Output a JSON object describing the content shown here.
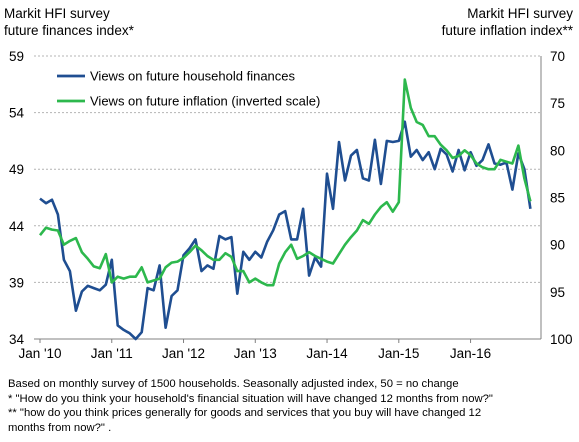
{
  "left_title": [
    "Markit HFI survey",
    "future finances index*"
  ],
  "right_title": [
    "Markit HFI survey",
    "future inflation index**"
  ],
  "notes": [
    "Based on monthly survey of 1500 households. Seasonally adjusted index, 50 = no change",
    "* \"How do you think your household's  financial situation will have changed 12 months  from now?\"",
    "** \"how do you think prices generally for goods and services that you buy will have changed 12",
    "months from now?\"  ."
  ],
  "colors": {
    "finances": "#1f4e91",
    "inflation": "#2db84d",
    "grid": "#b4b4b4"
  },
  "chart_data": {
    "type": "line",
    "x": [
      "2010-01",
      "2010-02",
      "2010-03",
      "2010-04",
      "2010-05",
      "2010-06",
      "2010-07",
      "2010-08",
      "2010-09",
      "2010-10",
      "2010-11",
      "2010-12",
      "2011-01",
      "2011-02",
      "2011-03",
      "2011-04",
      "2011-05",
      "2011-06",
      "2011-07",
      "2011-08",
      "2011-09",
      "2011-10",
      "2011-11",
      "2011-12",
      "2012-01",
      "2012-02",
      "2012-03",
      "2012-04",
      "2012-05",
      "2012-06",
      "2012-07",
      "2012-08",
      "2012-09",
      "2012-10",
      "2012-11",
      "2012-12",
      "2013-01",
      "2013-02",
      "2013-03",
      "2013-04",
      "2013-05",
      "2013-06",
      "2013-07",
      "2013-08",
      "2013-09",
      "2013-10",
      "2013-11",
      "2013-12",
      "2014-01",
      "2014-02",
      "2014-03",
      "2014-04",
      "2014-05",
      "2014-06",
      "2014-07",
      "2014-08",
      "2014-09",
      "2014-10",
      "2014-11",
      "2014-12",
      "2015-01",
      "2015-02",
      "2015-03",
      "2015-04",
      "2015-05",
      "2015-06",
      "2015-07",
      "2015-08",
      "2015-09",
      "2015-10",
      "2015-11",
      "2015-12",
      "2016-01",
      "2016-02",
      "2016-03",
      "2016-04",
      "2016-05",
      "2016-06",
      "2016-07",
      "2016-08",
      "2016-09",
      "2016-10",
      "2016-11"
    ],
    "x_tick_labels": [
      "Jan '10",
      "Jan '11",
      "Jan '12",
      "Jan '13",
      "Jan-14",
      "Jan-15",
      "Jan-16"
    ],
    "x_tick_dates": [
      "2010-01",
      "2011-01",
      "2012-01",
      "2013-01",
      "2014-01",
      "2015-01",
      "2016-01"
    ],
    "left_axis": {
      "ylim": [
        34,
        59
      ],
      "ticks": [
        34,
        39,
        44,
        49,
        54,
        59
      ]
    },
    "right_axis": {
      "ylim": [
        70,
        100
      ],
      "ticks": [
        70,
        75,
        80,
        85,
        90,
        95,
        100
      ],
      "inverted": true
    },
    "grid": true,
    "legend_position": "top-left",
    "series": [
      {
        "name": "Views on future household finances",
        "axis": "left",
        "values": [
          46.4,
          46.0,
          46.3,
          45.0,
          41.0,
          40.0,
          36.5,
          38.2,
          38.7,
          38.5,
          38.3,
          38.8,
          41.0,
          35.2,
          34.8,
          34.5,
          34.0,
          34.6,
          38.5,
          38.3,
          40.5,
          35.0,
          37.8,
          38.3,
          41.4,
          42.0,
          42.8,
          40.0,
          40.5,
          40.2,
          43.1,
          42.8,
          43.0,
          38.0,
          41.7,
          41.0,
          41.7,
          41.2,
          42.6,
          43.6,
          45.0,
          45.3,
          42.8,
          42.8,
          45.5,
          39.6,
          41.2,
          40.4,
          48.6,
          45.5,
          51.4,
          48.0,
          50.2,
          50.7,
          48.2,
          48.0,
          51.6,
          47.7,
          51.5,
          51.4,
          51.5,
          53.2,
          50.1,
          50.7,
          49.8,
          50.5,
          49.0,
          50.8,
          50.3,
          48.8,
          50.7,
          48.9,
          50.5,
          49.3,
          49.8,
          51.2,
          49.5,
          49.4,
          49.6,
          47.2,
          50.4,
          49.0,
          45.5
        ]
      },
      {
        "name": "Views on future inflation (inverted scale)",
        "axis": "right",
        "values": [
          89.0,
          88.2,
          88.4,
          88.5,
          90.0,
          89.6,
          89.3,
          90.8,
          91.5,
          92.3,
          92.5,
          91.0,
          94.0,
          93.4,
          93.6,
          93.4,
          93.4,
          92.4,
          94.0,
          93.8,
          93.6,
          92.4,
          91.9,
          91.8,
          91.4,
          90.8,
          90.1,
          90.6,
          91.2,
          91.6,
          91.6,
          90.9,
          91.3,
          92.8,
          92.8,
          94.0,
          93.6,
          94.0,
          94.3,
          94.3,
          92.0,
          90.8,
          90.0,
          91.5,
          91.2,
          90.8,
          91.2,
          91.5,
          91.8,
          92.0,
          91.0,
          90.0,
          89.2,
          88.5,
          87.4,
          87.8,
          86.8,
          86.0,
          85.5,
          86.5,
          85.5,
          72.5,
          75.5,
          77.0,
          77.3,
          78.5,
          78.5,
          79.4,
          80.0,
          80.8,
          80.6,
          80.0,
          80.5,
          81.4,
          81.8,
          82.0,
          82.0,
          81.0,
          81.2,
          81.4,
          79.5,
          83.0,
          85.4
        ]
      }
    ]
  }
}
